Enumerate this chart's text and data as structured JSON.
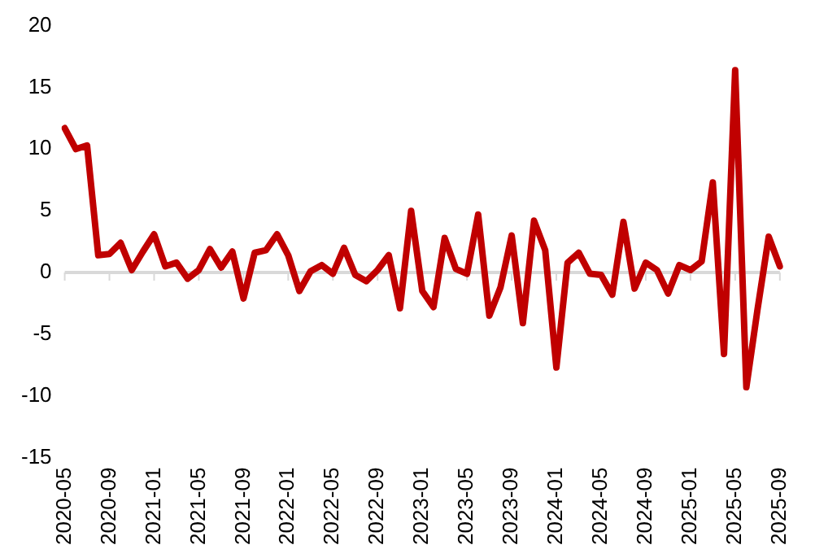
{
  "chart_data": {
    "type": "line",
    "categories": [
      "2020-05",
      null,
      null,
      null,
      "2020-09",
      null,
      null,
      null,
      "2021-01",
      null,
      null,
      null,
      "2021-05",
      null,
      null,
      null,
      "2021-09",
      null,
      null,
      null,
      "2022-01",
      null,
      null,
      null,
      "2022-05",
      null,
      null,
      null,
      "2022-09",
      null,
      null,
      null,
      "2023-01",
      null,
      null,
      null,
      "2023-05",
      null,
      null,
      null,
      "2023-09",
      null,
      null,
      null,
      "2024-01",
      null,
      null,
      null,
      "2024-05",
      null,
      null,
      null,
      "2024-09",
      null,
      null,
      null,
      "2025-01",
      null,
      null,
      null,
      "2025-05",
      null,
      null,
      null,
      "2025-09"
    ],
    "series": [
      {
        "color": "#c00000",
        "values": [
          11.7,
          10,
          10.3,
          1.4,
          1.5,
          2.4,
          0.2,
          1.7,
          3.1,
          0.5,
          0.8,
          -0.5,
          0.2,
          1.9,
          0.4,
          1.7,
          -2.1,
          1.6,
          1.8,
          3.1,
          1.4,
          -1.5,
          0.1,
          0.6,
          -0.1,
          2.0,
          -0.2,
          -0.7,
          0.2,
          1.4,
          -2.9,
          5.0,
          -1.5,
          -2.8,
          2.8,
          0.3,
          -0.1,
          4.7,
          -3.5,
          -1.2,
          3.0,
          -4.1,
          4.2,
          1.8,
          -7.7,
          0.8,
          1.6,
          -0.1,
          -0.2,
          -1.8,
          4.1,
          -1.3,
          0.8,
          0.2,
          -1.7,
          0.6,
          0.2,
          0.9,
          7.3,
          -6.6,
          16.4,
          -9.3,
          -3.0,
          2.9,
          0.5
        ]
      }
    ],
    "ylim": [
      -15,
      20
    ],
    "yticks": [
      -15,
      -10,
      -5,
      0,
      5,
      10,
      15,
      20
    ],
    "ref_lines": [
      {
        "axis": "y",
        "value": 0,
        "color": "#d9d9d9"
      }
    ],
    "grid": false,
    "legend": false,
    "marker": "none",
    "line_style": "solid"
  }
}
